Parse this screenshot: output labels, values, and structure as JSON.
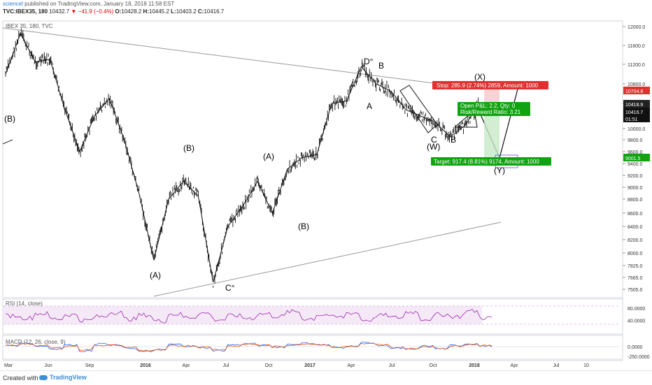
{
  "header": {
    "user": "sciencel",
    "published": "published on TradingView.com, January 18, 2018 11:58 EST",
    "symbol": "TVC:IBEX35, 180",
    "last": "10432.7",
    "change": "▼ −41.9 (−0.4%)",
    "o_label": "O:",
    "o_value": "10428.2",
    "h_label": "H:",
    "h_value": "10445.2",
    "l_label": "L:",
    "l_value": "10403.2",
    "c_label": "C:",
    "c_value": "10416.7"
  },
  "legend": {
    "main": "IBEX 35, 180, TVC",
    "rsi": "RSI (14, close)",
    "macd": "MACD (12, 26, close, 9)"
  },
  "footer": {
    "created_with": "Created with",
    "brand": "TradingView"
  },
  "colors": {
    "up_label": "#000000",
    "stop": "#e03131",
    "target": "#12a312",
    "rsi": "#9c27b0",
    "macd": "#2962ff",
    "signal": "#e65100"
  },
  "chart_data": [
    {
      "type": "line",
      "panel": "price",
      "title": "IBEX 35, 180, TVC",
      "y_axis_ticks": [
        12000,
        11600,
        11200,
        10800,
        10400,
        10000,
        9800,
        9600,
        9400,
        9200,
        9000,
        8800,
        8600,
        8400,
        8200,
        8000,
        7825,
        7665,
        7505
      ],
      "x_axis_ticks": [
        "Mar",
        "Jun",
        "Sep",
        "2016",
        "Apr",
        "Jul",
        "Oct",
        "2017",
        "Apr",
        "Jul",
        "Oct",
        "2018",
        "Apr",
        "Jul",
        "10"
      ],
      "series": [
        {
          "x": [
            "Mar 2015",
            "Apr 2015",
            "Jun 2015",
            "Jul 2015",
            "Aug 2015",
            "Sep 2015",
            "Oct 2015",
            "Nov 2015",
            "Dec 2015",
            "Jan 2016",
            "Feb 2016",
            "Mar 2016",
            "Apr 2016",
            "May 2016",
            "Jun 2016",
            "Jul 2016",
            "Aug 2016",
            "Oct 2016",
            "Nov 2016",
            "Dec 2016",
            "Jan 2017",
            "Feb 2017",
            "Mar 2017",
            "Apr 2017",
            "May 2017",
            "Jun 2017",
            "Jul 2017",
            "Aug 2017",
            "Sep 2017",
            "Oct 2017",
            "Nov 2017",
            "Dec 2017",
            "Jan 2018"
          ],
          "values": [
            11000,
            11850,
            11250,
            11300,
            10300,
            9600,
            10200,
            10500,
            9800,
            8900,
            7900,
            8800,
            9100,
            8850,
            7600,
            8400,
            8700,
            9100,
            8600,
            9300,
            9500,
            9550,
            10400,
            10450,
            11150,
            10800,
            10650,
            10300,
            10200,
            10100,
            9850,
            10050,
            10416.7
          ]
        }
      ],
      "price_labels": [
        "10704.8",
        "10418.9",
        "10416.7",
        "01:51",
        "9001.5"
      ],
      "wave_labels": [
        "(B)",
        "(B)",
        "(A)",
        "(A)",
        "C°",
        "(B)",
        "D°",
        "B",
        "A",
        "C",
        "(W)",
        "B",
        "(X)",
        "(Y)"
      ],
      "annotations": {
        "stop": "Stop: 285.9 (2.74%) 2859, Amount: 1000",
        "open": "Open P&L: 2.2, Qty: 0",
        "risk": "Risk/Reward Ratio: 3.21",
        "target": "Target: 917.4 (8.81%) 9174, Amount: 1000"
      }
    },
    {
      "type": "line",
      "panel": "rsi",
      "title": "RSI (14, close)",
      "y_axis_ticks": [
        80.0,
        40.0
      ],
      "band": [
        30,
        70
      ],
      "series": [
        {
          "name": "RSI",
          "values": [
            55,
            48,
            62,
            45,
            58,
            40,
            52,
            66,
            44,
            57,
            38,
            60,
            50,
            63,
            42,
            55,
            47,
            61,
            53,
            68,
            45,
            58,
            50,
            64,
            41,
            56,
            49,
            67,
            44,
            59,
            52,
            70,
            48
          ]
        }
      ]
    },
    {
      "type": "line",
      "panel": "macd",
      "title": "MACD (12, 26, close, 9)",
      "y_axis_ticks": [
        0.0,
        -250.0
      ],
      "series": [
        {
          "name": "MACD",
          "values": [
            20,
            60,
            10,
            -40,
            30,
            -80,
            50,
            20,
            -30,
            -90,
            -60,
            40,
            10,
            -20,
            -70,
            30,
            50,
            20,
            -10,
            40,
            60,
            30,
            -20,
            10,
            70,
            20,
            -30,
            -50,
            10,
            -40,
            20,
            50,
            10
          ]
        },
        {
          "name": "Signal",
          "values": [
            15,
            45,
            20,
            -25,
            10,
            -55,
            25,
            25,
            -15,
            -70,
            -65,
            15,
            15,
            -10,
            -50,
            10,
            40,
            25,
            0,
            30,
            50,
            35,
            -10,
            5,
            50,
            30,
            -15,
            -40,
            0,
            -30,
            10,
            40,
            15
          ]
        }
      ]
    }
  ]
}
